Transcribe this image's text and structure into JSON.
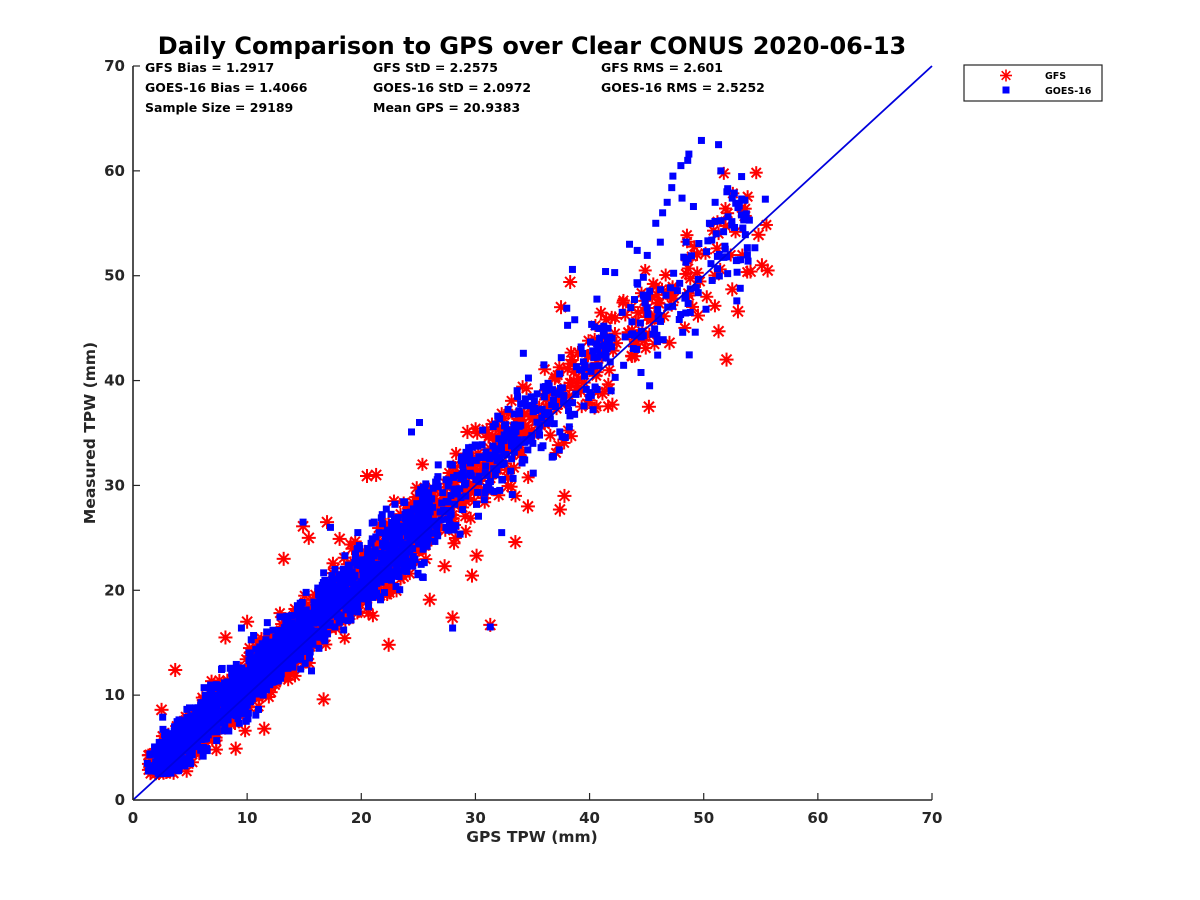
{
  "chart_data": {
    "type": "scatter",
    "title": "Daily Comparison to GPS over Clear CONUS 2020-06-13",
    "xlabel": "GPS TPW (mm)",
    "ylabel": "Measured TPW (mm)",
    "xlim": [
      0,
      70
    ],
    "ylim": [
      0,
      70
    ],
    "xticks": [
      "0",
      "10",
      "20",
      "30",
      "40",
      "50",
      "60",
      "70"
    ],
    "yticks": [
      "0",
      "10",
      "20",
      "30",
      "40",
      "50",
      "60",
      "70"
    ],
    "legend_position": "outside-top-right",
    "stats": [
      [
        "GFS Bias = 1.2917",
        "GFS StD = 2.2575",
        "GFS RMS = 2.601"
      ],
      [
        "GOES-16 Bias = 1.4066",
        "GOES-16 StD = 2.0972",
        "GOES-16 RMS = 2.5252"
      ],
      [
        "Sample Size = 29189",
        "Mean GPS = 20.9383"
      ]
    ],
    "reference_line": {
      "x": [
        0,
        70
      ],
      "y": [
        0,
        70
      ],
      "color": "#0000dd"
    },
    "series": [
      {
        "name": "GFS",
        "marker": "asterisk",
        "color": "#ff0000",
        "cluster": {
          "xmin": 1.2,
          "xmax": 55.5,
          "intercept": 1.0,
          "slope": 1.0,
          "spread": 1.6
        },
        "outliers": [
          [
            1.5,
            4.3
          ],
          [
            2.5,
            8.6
          ],
          [
            3.7,
            12.4
          ],
          [
            3.7,
            3.3
          ],
          [
            8.1,
            15.5
          ],
          [
            9.0,
            4.9
          ],
          [
            10.0,
            17.0
          ],
          [
            11.5,
            6.8
          ],
          [
            13.2,
            23.0
          ],
          [
            14.9,
            26.1
          ],
          [
            15.4,
            25.0
          ],
          [
            16.7,
            9.6
          ],
          [
            17.0,
            26.5
          ],
          [
            18.1,
            24.9
          ],
          [
            20.5,
            30.9
          ],
          [
            21.3,
            31.0
          ],
          [
            22.4,
            14.8
          ],
          [
            23.7,
            21.3
          ],
          [
            26.0,
            19.1
          ],
          [
            27.3,
            22.3
          ],
          [
            28.0,
            17.4
          ],
          [
            29.7,
            21.4
          ],
          [
            30.1,
            23.3
          ],
          [
            31.3,
            16.7
          ],
          [
            29.3,
            35.1
          ],
          [
            31.0,
            35.3
          ],
          [
            34.6,
            28.0
          ],
          [
            33.5,
            24.6
          ],
          [
            37.4,
            27.7
          ],
          [
            37.8,
            29.0
          ],
          [
            38.3,
            49.4
          ],
          [
            37.5,
            47.0
          ],
          [
            42.0,
            37.7
          ],
          [
            45.2,
            37.5
          ],
          [
            47.0,
            43.6
          ],
          [
            49.5,
            46.2
          ],
          [
            51.3,
            44.7
          ],
          [
            52.0,
            42.0
          ],
          [
            52.5,
            48.7
          ],
          [
            53.0,
            46.6
          ],
          [
            53.6,
            55.7
          ],
          [
            54.1,
            50.4
          ],
          [
            55.1,
            51.0
          ],
          [
            55.6,
            50.5
          ],
          [
            54.8,
            53.9
          ]
        ]
      },
      {
        "name": "GOES-16",
        "marker": "square",
        "color": "#0000ff",
        "cluster": {
          "xmin": 1.2,
          "xmax": 55.0,
          "intercept": 1.1,
          "slope": 1.0,
          "spread": 1.7
        },
        "outliers": [
          [
            1.5,
            4.4
          ],
          [
            2.6,
            7.9
          ],
          [
            9.5,
            16.4
          ],
          [
            14.9,
            26.5
          ],
          [
            17.3,
            26.0
          ],
          [
            24.4,
            35.1
          ],
          [
            25.1,
            36.0
          ],
          [
            28.0,
            16.4
          ],
          [
            29.4,
            33.6
          ],
          [
            31.3,
            16.5
          ],
          [
            32.3,
            25.5
          ],
          [
            34.2,
            42.6
          ],
          [
            36.0,
            41.5
          ],
          [
            38.0,
            46.9
          ],
          [
            38.5,
            50.6
          ],
          [
            38.7,
            45.8
          ],
          [
            41.4,
            50.4
          ],
          [
            42.2,
            50.3
          ],
          [
            41.2,
            44.3
          ],
          [
            43.5,
            53.0
          ],
          [
            45.8,
            55.0
          ],
          [
            46.2,
            53.2
          ],
          [
            47.3,
            59.5
          ],
          [
            46.8,
            57.0
          ],
          [
            47.2,
            58.4
          ],
          [
            46.4,
            56.0
          ],
          [
            48.1,
            57.4
          ],
          [
            49.1,
            56.6
          ],
          [
            49.8,
            62.9
          ],
          [
            48.7,
            61.6
          ],
          [
            48.6,
            61.0
          ],
          [
            48.0,
            60.5
          ],
          [
            50.5,
            55.0
          ],
          [
            51.1,
            54.0
          ],
          [
            51.3,
            62.5
          ],
          [
            51.5,
            60.0
          ],
          [
            51.0,
            57.0
          ],
          [
            52.1,
            58.3
          ],
          [
            52.5,
            57.4
          ],
          [
            53.0,
            56.5
          ],
          [
            53.6,
            57.2
          ],
          [
            54.0,
            55.3
          ],
          [
            55.4,
            57.3
          ],
          [
            53.3,
            55.8
          ],
          [
            52.7,
            54.6
          ],
          [
            52.9,
            47.6
          ],
          [
            53.2,
            48.8
          ],
          [
            52.1,
            50.2
          ],
          [
            53.0,
            51.5
          ]
        ]
      }
    ]
  }
}
